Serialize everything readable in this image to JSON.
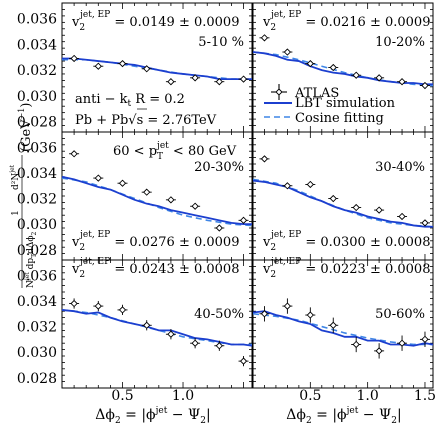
{
  "figure": {
    "ylabel_parts": [
      "1",
      "d²N",
      "jet",
      "N",
      "jet",
      " dp",
      "T",
      "dΔϕ",
      "2",
      "(GeV",
      "−1",
      ")"
    ],
    "xlabel_parts": [
      "Δϕ",
      "2",
      " = |ϕ",
      "jet",
      " − Ψ",
      "2",
      "|"
    ],
    "legend": {
      "atlas": "ATLAS",
      "lbt": "LBT simulation",
      "cosine": "Cosine fitting"
    },
    "annotations": {
      "algorithm": [
        "anti − k",
        "t",
        " R = 0.2"
      ],
      "system": [
        "Pb + Pb",
        "√s",
        " = 2.76TeV"
      ],
      "pt_range": [
        "60 < p",
        "T",
        "jet",
        " < 80 GeV"
      ]
    },
    "colors": {
      "lbt": "#1c3fcf",
      "cosine": "#3f86e6",
      "atlas": "#000000"
    }
  },
  "chart_data": [
    {
      "type": "scatter",
      "centrality": "5-10 %",
      "v2_label": {
        "base": "v",
        "sub": "2",
        "sup": "jet, EP",
        "value": " = 0.0149 ± 0.0009"
      },
      "xlim": [
        0,
        1.57
      ],
      "ylim": [
        0.0272,
        0.0372
      ],
      "yticks": [
        "0.036",
        "0.034",
        "0.032",
        "0.030",
        "0.028"
      ],
      "xticks": [],
      "series": [
        {
          "name": "ATLAS",
          "x": [
            0.1,
            0.3,
            0.5,
            0.7,
            0.9,
            1.1,
            1.3,
            1.5
          ],
          "y": [
            0.0329,
            0.0323,
            0.0325,
            0.0321,
            0.0311,
            0.0314,
            0.0311,
            0.0313
          ],
          "yerr": [
            0.0002,
            0.0002,
            0.0002,
            0.0002,
            0.0002,
            0.0002,
            0.0002,
            0.0002
          ]
        },
        {
          "name": "LBT simulation",
          "x": [
            0.0,
            0.1,
            0.2,
            0.3,
            0.4,
            0.5,
            0.6,
            0.7,
            0.8,
            0.9,
            1.0,
            1.1,
            1.2,
            1.3,
            1.4,
            1.5,
            1.57
          ],
          "y": [
            0.0329,
            0.0329,
            0.0328,
            0.0327,
            0.0326,
            0.0325,
            0.0324,
            0.0322,
            0.032,
            0.0318,
            0.0317,
            0.0316,
            0.0315,
            0.0313,
            0.0313,
            0.0313,
            0.0313
          ]
        },
        {
          "name": "Cosine fitting",
          "x": [
            0.0,
            0.2,
            0.4,
            0.6,
            0.8,
            1.0,
            1.2,
            1.4,
            1.57
          ],
          "y": [
            0.0328,
            0.0328,
            0.0326,
            0.0323,
            0.032,
            0.0317,
            0.0315,
            0.0313,
            0.0313
          ]
        }
      ]
    },
    {
      "type": "scatter",
      "centrality": "10-20%",
      "v2_label": {
        "base": "v",
        "sub": "2",
        "sup": "jet, EP",
        "value": " = 0.0216 ± 0.0009"
      },
      "xlim": [
        0,
        1.57
      ],
      "ylim": [
        0.0272,
        0.0372
      ],
      "yticks": [],
      "xticks": [],
      "series": [
        {
          "name": "ATLAS",
          "x": [
            0.1,
            0.3,
            0.5,
            0.7,
            0.9,
            1.1,
            1.3,
            1.5
          ],
          "y": [
            0.0345,
            0.0334,
            0.0325,
            0.0322,
            0.0316,
            0.0314,
            0.0311,
            0.0308
          ],
          "yerr": [
            0.0002,
            0.0002,
            0.0002,
            0.0002,
            0.0002,
            0.0002,
            0.0002,
            0.0002
          ]
        },
        {
          "name": "LBT simulation",
          "x": [
            0.0,
            0.1,
            0.2,
            0.3,
            0.4,
            0.5,
            0.6,
            0.7,
            0.8,
            0.9,
            1.0,
            1.1,
            1.2,
            1.3,
            1.4,
            1.5,
            1.57
          ],
          "y": [
            0.0334,
            0.0333,
            0.0331,
            0.0328,
            0.0327,
            0.0323,
            0.032,
            0.0318,
            0.0317,
            0.0315,
            0.0314,
            0.0312,
            0.0311,
            0.031,
            0.031,
            0.0309,
            0.0309
          ]
        },
        {
          "name": "Cosine fitting",
          "x": [
            0.0,
            0.2,
            0.4,
            0.6,
            0.8,
            1.0,
            1.2,
            1.4,
            1.57
          ],
          "y": [
            0.0334,
            0.0332,
            0.0328,
            0.0323,
            0.0318,
            0.0314,
            0.0311,
            0.0309,
            0.0308
          ]
        }
      ]
    },
    {
      "type": "scatter",
      "centrality": "20-30%",
      "v2_label": {
        "base": "v",
        "sub": "2",
        "sup": "jet, EP",
        "value": " = 0.0276 ± 0.0009"
      },
      "xlim": [
        0,
        1.57
      ],
      "ylim": [
        0.0272,
        0.0372
      ],
      "yticks": [
        "0.036",
        "0.034",
        "0.032",
        "0.030",
        "0.028"
      ],
      "xticks": [],
      "series": [
        {
          "name": "ATLAS",
          "x": [
            0.1,
            0.3,
            0.5,
            0.7,
            0.9,
            1.1,
            1.3,
            1.5
          ],
          "y": [
            0.0355,
            0.0336,
            0.0332,
            0.0325,
            0.0319,
            0.0314,
            0.0297,
            0.0303
          ],
          "yerr": [
            0.0002,
            0.0002,
            0.0002,
            0.0002,
            0.0002,
            0.0002,
            0.0002,
            0.0002
          ]
        },
        {
          "name": "LBT simulation",
          "x": [
            0.0,
            0.1,
            0.2,
            0.3,
            0.4,
            0.5,
            0.6,
            0.7,
            0.8,
            0.9,
            1.0,
            1.1,
            1.2,
            1.3,
            1.4,
            1.5,
            1.57
          ],
          "y": [
            0.0337,
            0.0335,
            0.0332,
            0.0329,
            0.0327,
            0.0323,
            0.0319,
            0.0316,
            0.0314,
            0.0311,
            0.0309,
            0.0307,
            0.0305,
            0.0303,
            0.0301,
            0.03,
            0.03
          ]
        },
        {
          "name": "Cosine fitting",
          "x": [
            0.0,
            0.2,
            0.4,
            0.6,
            0.8,
            1.0,
            1.2,
            1.4,
            1.57
          ],
          "y": [
            0.0336,
            0.0333,
            0.0327,
            0.032,
            0.0313,
            0.0307,
            0.0303,
            0.03,
            0.0299
          ]
        }
      ]
    },
    {
      "type": "scatter",
      "centrality": "30-40%",
      "v2_label": {
        "base": "v",
        "sub": "2",
        "sup": "jet, EP",
        "value": " = 0.0300 ± 0.0008"
      },
      "xlim": [
        0,
        1.57
      ],
      "ylim": [
        0.0272,
        0.0372
      ],
      "yticks": [],
      "xticks": [],
      "series": [
        {
          "name": "ATLAS",
          "x": [
            0.1,
            0.3,
            0.5,
            0.7,
            0.9,
            1.1,
            1.3,
            1.5
          ],
          "y": [
            0.0351,
            0.033,
            0.0331,
            0.032,
            0.0313,
            0.0311,
            0.0306,
            0.0301
          ],
          "yerr": [
            0.0002,
            0.0002,
            0.0002,
            0.0002,
            0.0002,
            0.0002,
            0.0002,
            0.0002
          ]
        },
        {
          "name": "LBT simulation",
          "x": [
            0.0,
            0.1,
            0.2,
            0.3,
            0.4,
            0.5,
            0.6,
            0.7,
            0.8,
            0.9,
            1.0,
            1.1,
            1.2,
            1.3,
            1.4,
            1.5,
            1.57
          ],
          "y": [
            0.0334,
            0.0333,
            0.0331,
            0.0329,
            0.0325,
            0.0321,
            0.0318,
            0.0314,
            0.0311,
            0.0309,
            0.0306,
            0.0304,
            0.0302,
            0.0301,
            0.0299,
            0.0298,
            0.0298
          ]
        },
        {
          "name": "Cosine fitting",
          "x": [
            0.0,
            0.2,
            0.4,
            0.6,
            0.8,
            1.0,
            1.2,
            1.4,
            1.57
          ],
          "y": [
            0.0335,
            0.0332,
            0.0326,
            0.0318,
            0.0311,
            0.0305,
            0.0301,
            0.0299,
            0.0298
          ]
        }
      ]
    },
    {
      "type": "scatter",
      "centrality": "40-50%",
      "v2_label": {
        "base": "v",
        "sub": "2",
        "sup": "jet, EP",
        "value": " = 0.0243 ± 0.0008"
      },
      "xlim": [
        0,
        1.57
      ],
      "ylim": [
        0.0272,
        0.0372
      ],
      "yticks": [
        "0.036",
        "0.034",
        "0.032",
        "0.030",
        "0.028"
      ],
      "xticks": [
        "0.5",
        "1.0"
      ],
      "series": [
        {
          "name": "ATLAS",
          "x": [
            0.1,
            0.3,
            0.5,
            0.7,
            0.9,
            1.1,
            1.3,
            1.5
          ],
          "y": [
            0.0338,
            0.0336,
            0.0333,
            0.0321,
            0.0314,
            0.0307,
            0.0305,
            0.0293
          ],
          "yerr": [
            0.0004,
            0.0004,
            0.0004,
            0.0004,
            0.0004,
            0.0004,
            0.0004,
            0.0004
          ]
        },
        {
          "name": "LBT simulation",
          "x": [
            0.0,
            0.1,
            0.2,
            0.3,
            0.4,
            0.5,
            0.6,
            0.7,
            0.8,
            0.9,
            1.0,
            1.1,
            1.2,
            1.3,
            1.4,
            1.5,
            1.57
          ],
          "y": [
            0.0333,
            0.0332,
            0.033,
            0.0331,
            0.0327,
            0.0324,
            0.0322,
            0.032,
            0.0317,
            0.0317,
            0.0314,
            0.0311,
            0.031,
            0.0308,
            0.0306,
            0.0306,
            0.0305
          ]
        },
        {
          "name": "Cosine fitting",
          "x": [
            0.0,
            0.2,
            0.4,
            0.6,
            0.8,
            1.0,
            1.2,
            1.4,
            1.57
          ],
          "y": [
            0.0333,
            0.0331,
            0.0327,
            0.0322,
            0.0317,
            0.0312,
            0.0309,
            0.0306,
            0.0306
          ]
        }
      ]
    },
    {
      "type": "scatter",
      "centrality": "50-60%",
      "v2_label": {
        "base": "v",
        "sub": "2",
        "sup": "jet, EP",
        "value": " = 0.0223 ± 0.0008"
      },
      "xlim": [
        0,
        1.57
      ],
      "ylim": [
        0.0272,
        0.0372
      ],
      "yticks": [],
      "xticks": [
        "0.5",
        "1.0",
        "1.5"
      ],
      "series": [
        {
          "name": "ATLAS",
          "x": [
            0.1,
            0.3,
            0.5,
            0.7,
            0.9,
            1.1,
            1.3,
            1.5
          ],
          "y": [
            0.033,
            0.0336,
            0.0329,
            0.0321,
            0.0306,
            0.0301,
            0.0307,
            0.031
          ],
          "yerr": [
            0.0006,
            0.0006,
            0.0006,
            0.0006,
            0.0006,
            0.0006,
            0.0006,
            0.0006
          ]
        },
        {
          "name": "LBT simulation",
          "x": [
            0.0,
            0.1,
            0.2,
            0.3,
            0.4,
            0.5,
            0.6,
            0.7,
            0.8,
            0.9,
            1.0,
            1.1,
            1.2,
            1.3,
            1.4,
            1.5,
            1.57
          ],
          "y": [
            0.0331,
            0.0332,
            0.0329,
            0.0327,
            0.0324,
            0.0322,
            0.0317,
            0.0315,
            0.0312,
            0.0312,
            0.0309,
            0.0309,
            0.0306,
            0.0306,
            0.0305,
            0.0307,
            0.0306
          ]
        },
        {
          "name": "Cosine fitting",
          "x": [
            0.0,
            0.2,
            0.4,
            0.6,
            0.8,
            1.0,
            1.2,
            1.4,
            1.57
          ],
          "y": [
            0.033,
            0.0328,
            0.0325,
            0.032,
            0.0315,
            0.0311,
            0.0308,
            0.0306,
            0.0306
          ]
        }
      ]
    }
  ]
}
